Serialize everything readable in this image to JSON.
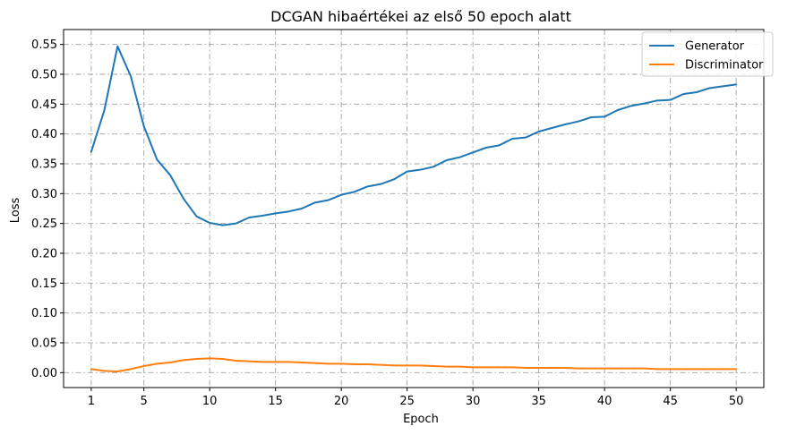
{
  "chart_data": {
    "type": "line",
    "title": "DCGAN hibaértékei az első 50 epoch alatt",
    "xlabel": "Epoch",
    "ylabel": "Loss",
    "xlim": [
      -1.1,
      52.1
    ],
    "ylim": [
      -0.025,
      0.575
    ],
    "x_ticks": [
      1,
      5,
      10,
      15,
      20,
      25,
      30,
      35,
      40,
      45,
      50
    ],
    "y_ticks": [
      "0.00",
      "0.05",
      "0.10",
      "0.15",
      "0.20",
      "0.25",
      "0.30",
      "0.35",
      "0.40",
      "0.45",
      "0.50",
      "0.55"
    ],
    "grid": true,
    "legend_position": "top-right",
    "x": [
      1,
      2,
      3,
      4,
      5,
      6,
      7,
      8,
      9,
      10,
      11,
      12,
      13,
      14,
      15,
      16,
      17,
      18,
      19,
      20,
      21,
      22,
      23,
      24,
      25,
      26,
      27,
      28,
      29,
      30,
      31,
      32,
      33,
      34,
      35,
      36,
      37,
      38,
      39,
      40,
      41,
      42,
      43,
      44,
      45,
      46,
      47,
      48,
      49,
      50
    ],
    "series": [
      {
        "name": "Generator",
        "color": "#1f77b4",
        "values": [
          0.37,
          0.44,
          0.547,
          0.497,
          0.413,
          0.357,
          0.331,
          0.292,
          0.262,
          0.251,
          0.247,
          0.25,
          0.26,
          0.263,
          0.267,
          0.27,
          0.275,
          0.285,
          0.289,
          0.298,
          0.303,
          0.312,
          0.316,
          0.324,
          0.337,
          0.34,
          0.345,
          0.356,
          0.361,
          0.369,
          0.377,
          0.381,
          0.392,
          0.394,
          0.404,
          0.41,
          0.416,
          0.421,
          0.428,
          0.429,
          0.44,
          0.447,
          0.451,
          0.456,
          0.457,
          0.467,
          0.47,
          0.477,
          0.48,
          0.483
        ]
      },
      {
        "name": "Discriminator",
        "color": "#ff7f0e",
        "values": [
          0.006,
          0.003,
          0.002,
          0.006,
          0.011,
          0.015,
          0.017,
          0.021,
          0.023,
          0.024,
          0.023,
          0.02,
          0.019,
          0.018,
          0.018,
          0.018,
          0.017,
          0.016,
          0.015,
          0.015,
          0.014,
          0.014,
          0.013,
          0.012,
          0.012,
          0.012,
          0.011,
          0.01,
          0.01,
          0.009,
          0.009,
          0.009,
          0.009,
          0.008,
          0.008,
          0.008,
          0.008,
          0.007,
          0.007,
          0.007,
          0.007,
          0.007,
          0.007,
          0.006,
          0.006,
          0.006,
          0.006,
          0.006,
          0.006,
          0.006
        ]
      }
    ]
  }
}
